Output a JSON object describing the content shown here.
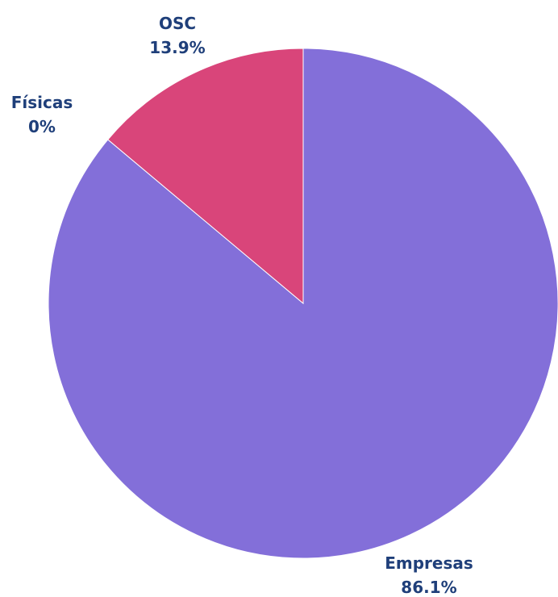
{
  "chart_data": {
    "type": "pie",
    "title": "",
    "slices": [
      {
        "label": "Empresas",
        "value": 86.1,
        "value_label": "86.1%",
        "color": "#836fd9"
      },
      {
        "label": "Físicas",
        "value": 0,
        "value_label": "0%",
        "color": "#3dbfa5"
      },
      {
        "label": "OSC",
        "value": 13.9,
        "value_label": "13.9%",
        "color": "#d9457a"
      }
    ],
    "label_color": "#1f3f7a",
    "legend": "none"
  }
}
